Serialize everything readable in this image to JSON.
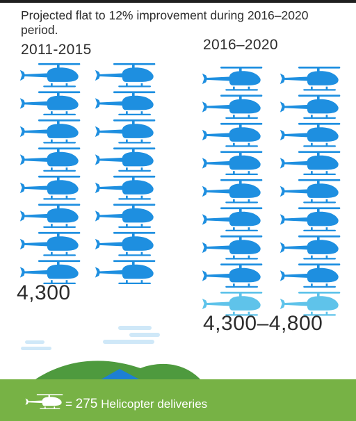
{
  "subtitle": "Projected flat to 12% improvement during 2016–2020 period.",
  "legend": {
    "icon": "helicopter-icon",
    "prefix": "= ",
    "value": "275",
    "text": " Helicopter deliveries"
  },
  "colors": {
    "helicopter": "#1e8fe0",
    "helicopter_light": "#5fc3ea",
    "ground": "#77b245",
    "hill": "#4e9a3e",
    "water": "#1d7fd4",
    "cloud": "#cfe8f8",
    "text": "#2c2c2c"
  },
  "chart_data": {
    "type": "pictograph",
    "unit_label": "Helicopter deliveries",
    "unit_value": 275,
    "categories": [
      "2011-2015",
      "2016–2020"
    ],
    "series": [
      {
        "label": "2011-2015",
        "total_text": "4,300",
        "icons_full": 16,
        "icons_partial": 0
      },
      {
        "label": "2016–2020",
        "total_text": "4,300–4,800",
        "icons_full": 16,
        "icons_partial": 2
      }
    ]
  }
}
